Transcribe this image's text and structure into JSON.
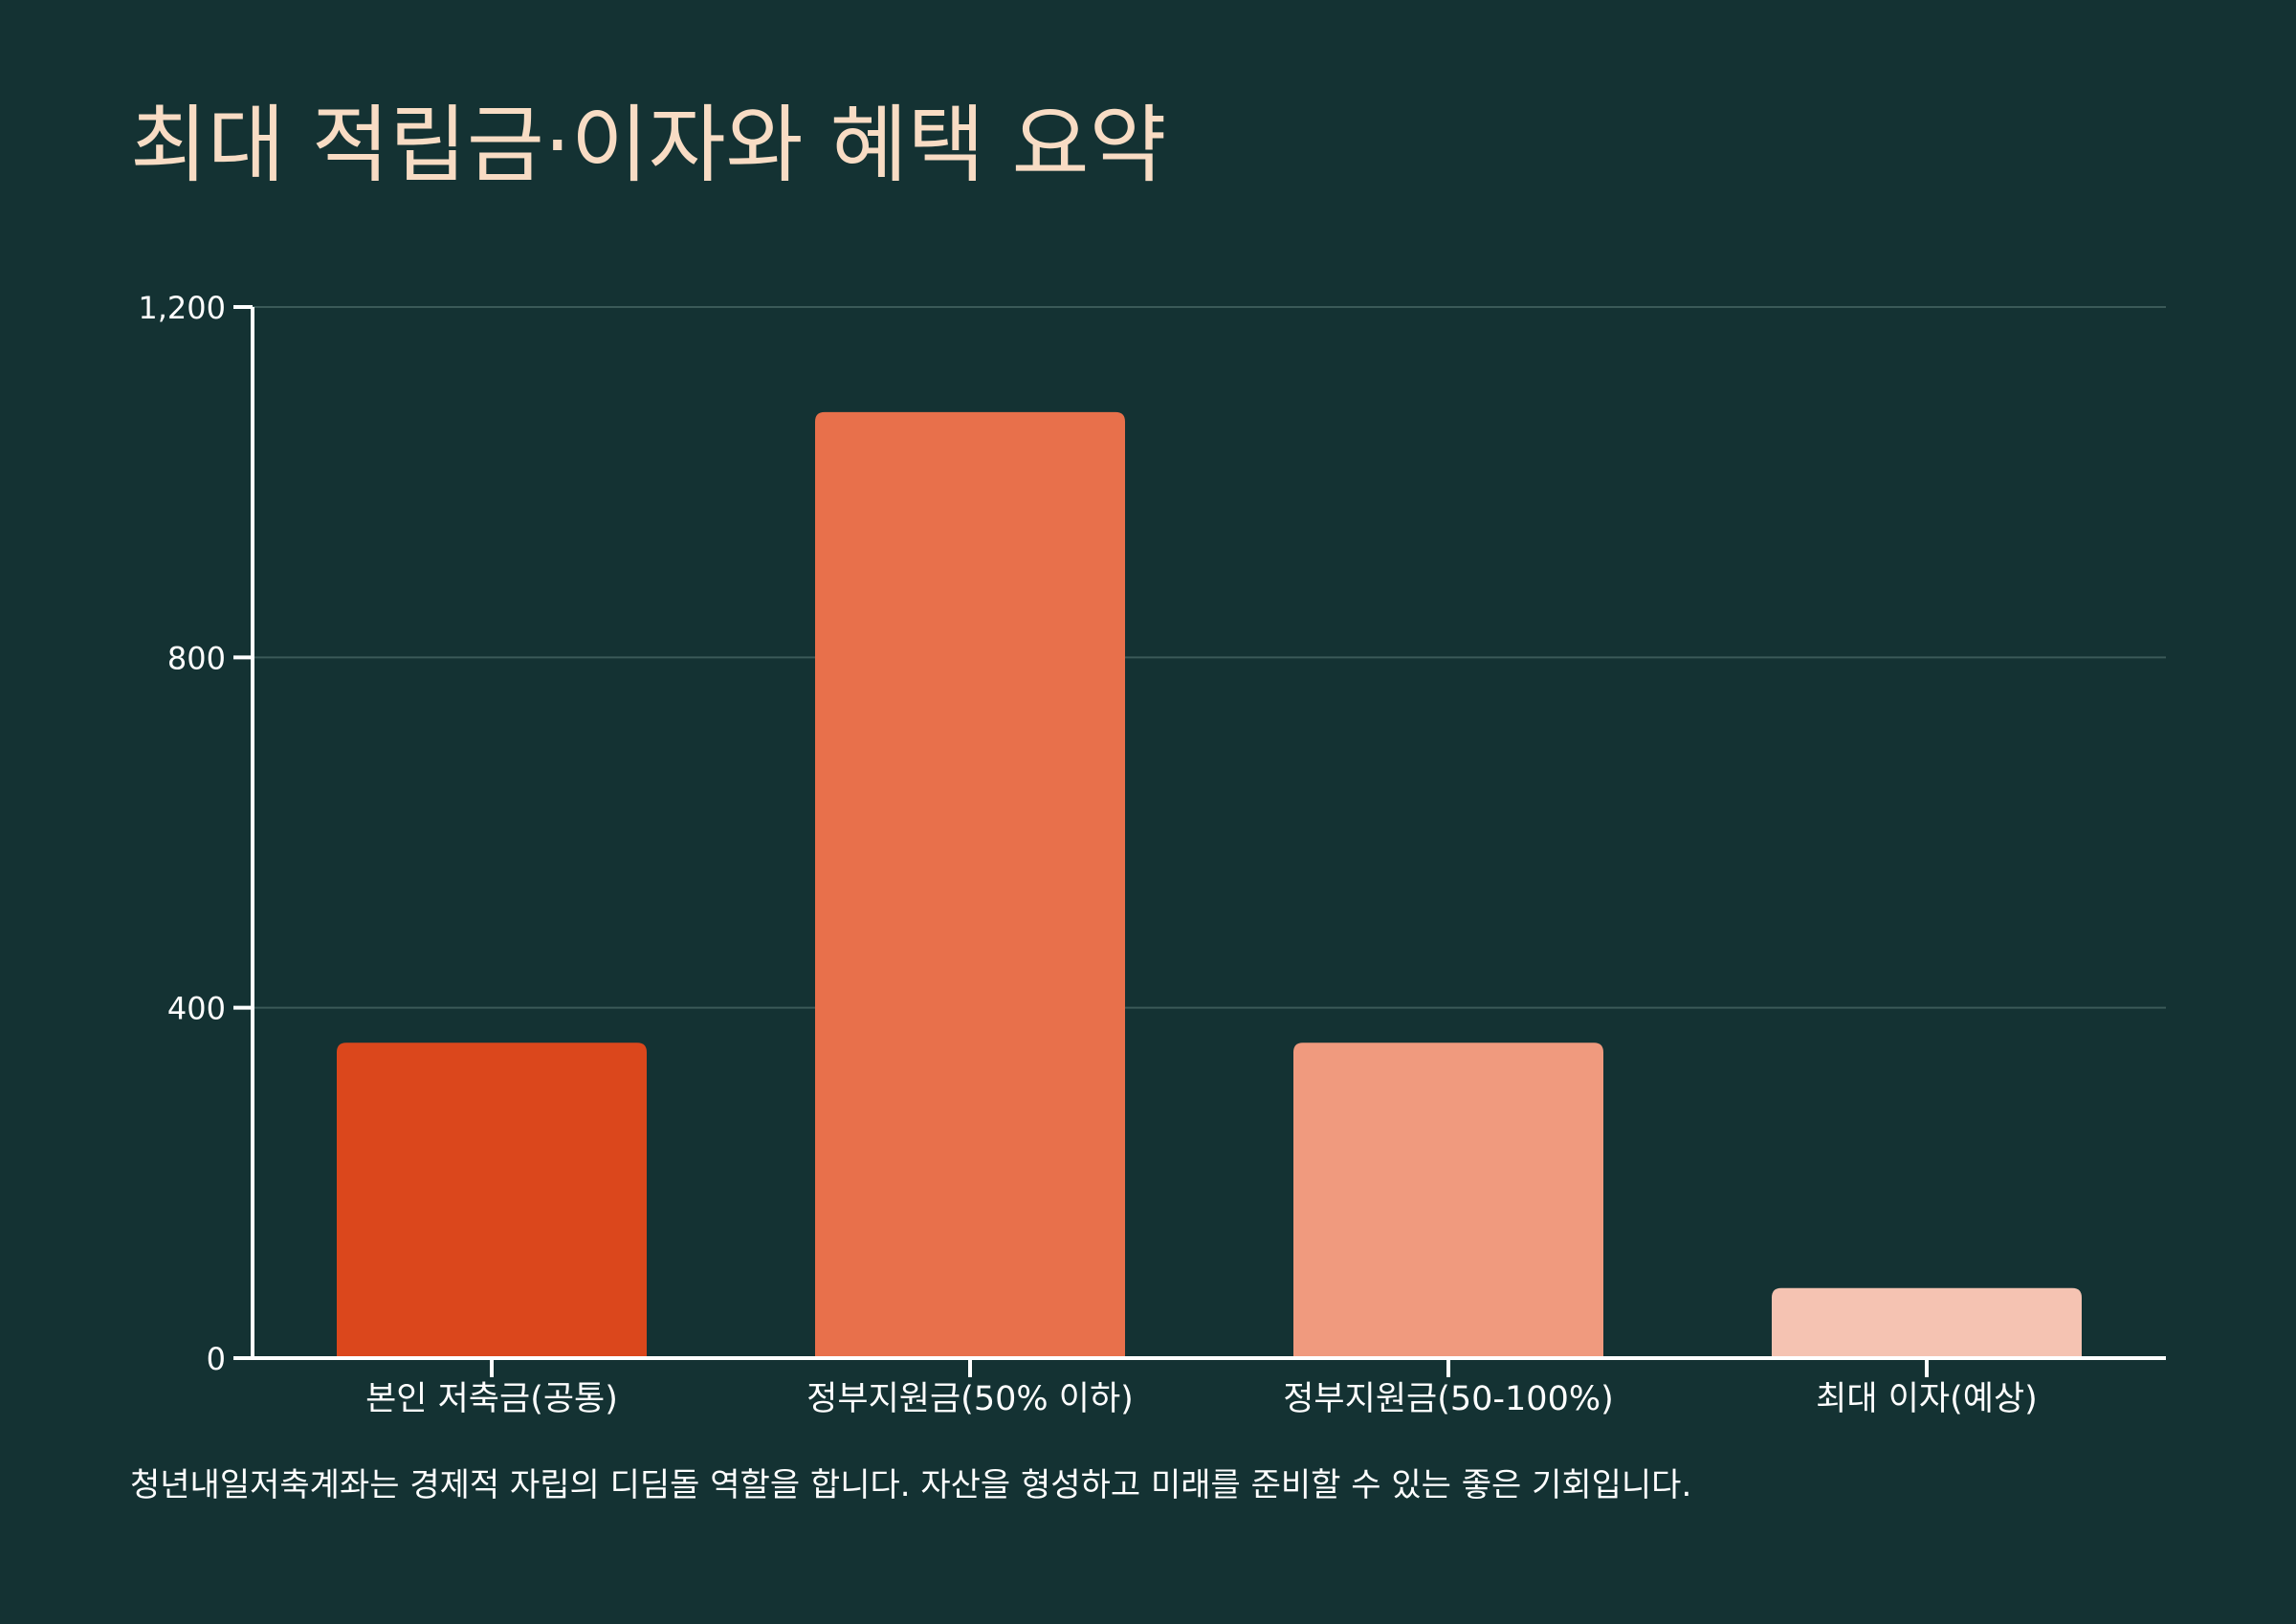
{
  "chart_data": {
    "type": "bar",
    "title": "최대 적립금·이자와 혜택 요약",
    "categories": [
      "본인 저축금(공통)",
      "정부지원금(50% 이하)",
      "정부지원금(50-100%)",
      "최대 이자(예상)"
    ],
    "values": [
      360,
      1080,
      360,
      80
    ],
    "colors": [
      "#db471c",
      "#e8704b",
      "#f09a7e",
      "#f5c3b2"
    ],
    "ylim": [
      0,
      1200
    ],
    "yticks": [
      0,
      400,
      800,
      1200
    ],
    "ytick_labels": [
      "0",
      "400",
      "800",
      "1,200"
    ],
    "xlabel": "",
    "ylabel": "",
    "grid": true,
    "caption": "청년내일저축계좌는 경제적 자립의 디딤돌 역할을 합니다. 자산을 형성하고 미래를 준비할 수 있는 좋은 기회입니다."
  },
  "colors": {
    "background": "#143233",
    "title": "#f8dcc4",
    "axis": "#ffffff",
    "grid": "#3b5a58",
    "text": "#ffffff"
  }
}
